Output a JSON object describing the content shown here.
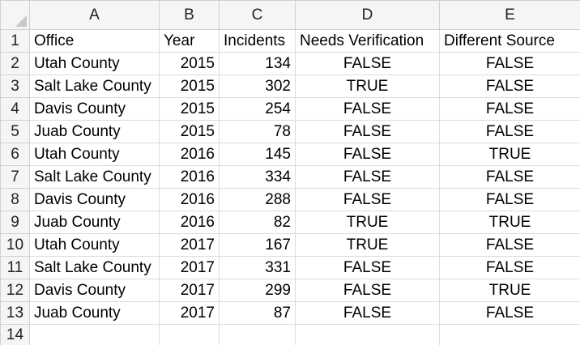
{
  "columns": [
    "A",
    "B",
    "C",
    "D",
    "E"
  ],
  "row_numbers": [
    "1",
    "2",
    "3",
    "4",
    "5",
    "6",
    "7",
    "8",
    "9",
    "10",
    "11",
    "12",
    "13",
    "14"
  ],
  "header": {
    "office": "Office",
    "year": "Year",
    "incidents": "Incidents",
    "needs_verification": "Needs Verification",
    "different_source": "Different Source"
  },
  "rows": [
    {
      "office": "Utah County",
      "year": "2015",
      "incidents": "134",
      "needs_verification": "FALSE",
      "different_source": "FALSE"
    },
    {
      "office": "Salt Lake County",
      "year": "2015",
      "incidents": "302",
      "needs_verification": "TRUE",
      "different_source": "FALSE"
    },
    {
      "office": "Davis County",
      "year": "2015",
      "incidents": "254",
      "needs_verification": "FALSE",
      "different_source": "FALSE"
    },
    {
      "office": "Juab County",
      "year": "2015",
      "incidents": "78",
      "needs_verification": "FALSE",
      "different_source": "FALSE"
    },
    {
      "office": "Utah County",
      "year": "2016",
      "incidents": "145",
      "needs_verification": "FALSE",
      "different_source": "TRUE"
    },
    {
      "office": "Salt Lake County",
      "year": "2016",
      "incidents": "334",
      "needs_verification": "FALSE",
      "different_source": "FALSE"
    },
    {
      "office": "Davis County",
      "year": "2016",
      "incidents": "288",
      "needs_verification": "FALSE",
      "different_source": "FALSE"
    },
    {
      "office": "Juab County",
      "year": "2016",
      "incidents": "82",
      "needs_verification": "TRUE",
      "different_source": "TRUE"
    },
    {
      "office": "Utah County",
      "year": "2017",
      "incidents": "167",
      "needs_verification": "TRUE",
      "different_source": "FALSE"
    },
    {
      "office": "Salt Lake County",
      "year": "2017",
      "incidents": "331",
      "needs_verification": "FALSE",
      "different_source": "FALSE"
    },
    {
      "office": "Davis County",
      "year": "2017",
      "incidents": "299",
      "needs_verification": "FALSE",
      "different_source": "TRUE"
    },
    {
      "office": "Juab County",
      "year": "2017",
      "incidents": "87",
      "needs_verification": "FALSE",
      "different_source": "FALSE"
    }
  ]
}
